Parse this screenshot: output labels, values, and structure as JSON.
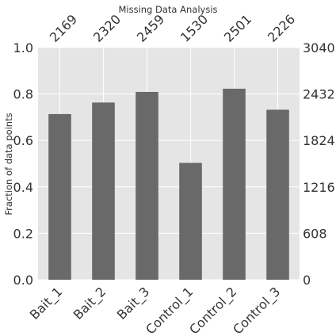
{
  "chart_data": {
    "type": "bar",
    "title": "Missing Data Analysis",
    "ylabel": "Fraction of data points",
    "categories": [
      "Bait_1",
      "Bait_2",
      "Bait_3",
      "Control_1",
      "Control_2",
      "Control_3"
    ],
    "counts": [
      2169,
      2320,
      2459,
      1530,
      2501,
      2226
    ],
    "total": 3040,
    "values": [
      0.7135,
      0.7632,
      0.8089,
      0.5033,
      0.8227,
      0.7322
    ],
    "ylim": [
      0,
      1
    ],
    "yticks_left": [
      "0.0",
      "0.2",
      "0.4",
      "0.6",
      "0.8",
      "1.0"
    ],
    "yticks_right": [
      "0",
      "608",
      "1216",
      "1824",
      "2432",
      "3040"
    ],
    "grid": true,
    "colors": {
      "bar": "#696969",
      "background": "#e5e5e5",
      "grid": "#ffffff"
    }
  }
}
